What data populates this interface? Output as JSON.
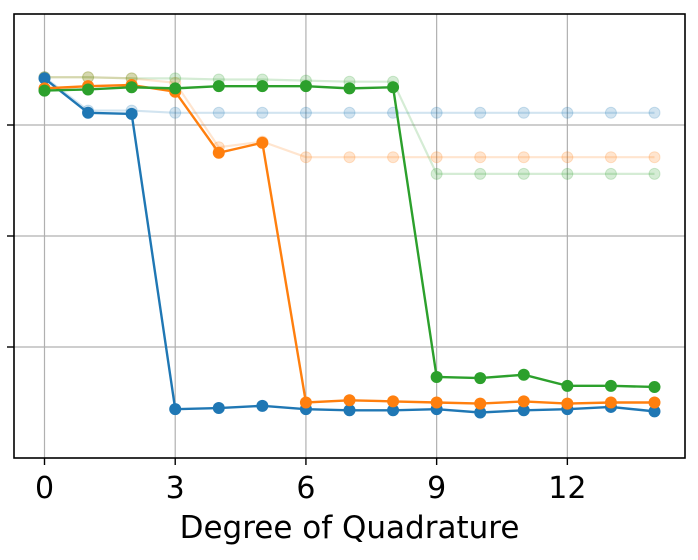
{
  "chart_data": {
    "type": "line",
    "title": "",
    "xlabel": "Degree of Quadrature",
    "ylabel": "",
    "xlim": [
      -0.7,
      14.7
    ],
    "ylim": [
      0,
      4
    ],
    "xticks": [
      0,
      3,
      6,
      9,
      12
    ],
    "xtick_labels": [
      "0",
      "3",
      "6",
      "9",
      "12"
    ],
    "yticks": [
      1,
      2,
      3
    ],
    "grid": true,
    "legend": "none",
    "x": [
      0,
      1,
      2,
      3,
      4,
      5,
      6,
      7,
      8,
      9,
      10,
      11,
      12,
      13,
      14
    ],
    "series": [
      {
        "color": "#1f77b4",
        "faded_values": [
          3.43,
          3.13,
          3.13,
          3.11,
          3.11,
          3.11,
          3.11,
          3.11,
          3.11,
          3.11,
          3.11,
          3.11,
          3.11,
          3.11,
          3.11
        ],
        "values": [
          3.42,
          3.11,
          3.1,
          0.44,
          0.45,
          0.47,
          0.44,
          0.43,
          0.43,
          0.44,
          0.41,
          0.43,
          0.44,
          0.46,
          0.42
        ]
      },
      {
        "color": "#ff7f0e",
        "faded_values": [
          3.43,
          3.43,
          3.42,
          3.38,
          2.8,
          2.85,
          2.71,
          2.71,
          2.71,
          2.71,
          2.71,
          2.71,
          2.71,
          2.71,
          2.71
        ],
        "values": [
          3.33,
          3.35,
          3.36,
          3.3,
          2.75,
          2.84,
          0.5,
          0.52,
          0.51,
          0.5,
          0.49,
          0.51,
          0.49,
          0.5,
          0.5
        ]
      },
      {
        "color": "#2ca02c",
        "faded_values": [
          3.43,
          3.43,
          3.42,
          3.42,
          3.41,
          3.41,
          3.4,
          3.39,
          3.39,
          2.56,
          2.56,
          2.56,
          2.56,
          2.56,
          2.56
        ],
        "values": [
          3.31,
          3.32,
          3.34,
          3.33,
          3.35,
          3.35,
          3.35,
          3.33,
          3.34,
          0.73,
          0.72,
          0.75,
          0.65,
          0.65,
          0.64
        ]
      }
    ]
  }
}
